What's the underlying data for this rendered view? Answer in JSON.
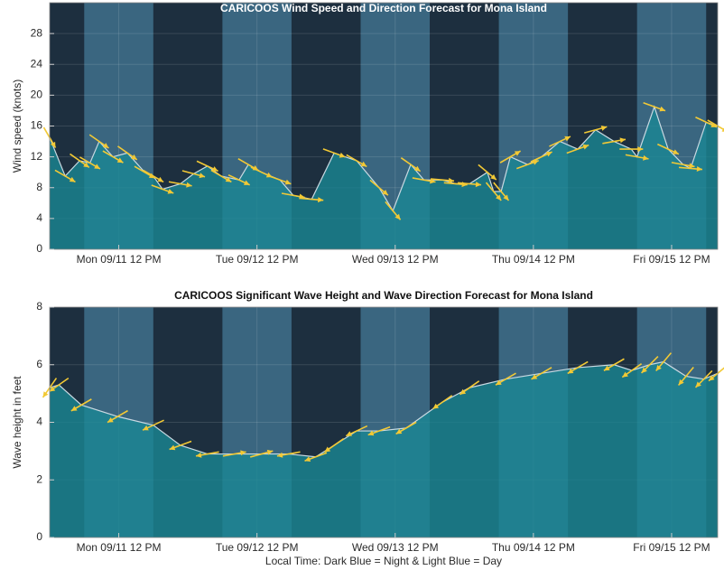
{
  "charts": [
    {
      "type": "area",
      "title": "CARICOOS Wind Speed and Direction Forecast for Mona Island",
      "ylabel": "Wind speed (knots)",
      "x": [
        0,
        2.7,
        5.2,
        7,
        8.6,
        11,
        13.5,
        16.5,
        18,
        19.6,
        22.7,
        25,
        27.4,
        29.8,
        32.9,
        34.5,
        36.8,
        40,
        42.3,
        45.5,
        49.4,
        53.3,
        57.2,
        59.6,
        62.7,
        65,
        68.2,
        70.5,
        72.9,
        76,
        77.1,
        78.4,
        80,
        83,
        85.4,
        88.6,
        91.7,
        94.8,
        98,
        101,
        102,
        105,
        107.4,
        110,
        111.3,
        114,
        116
      ],
      "values": [
        14.5,
        9.5,
        11.5,
        11.2,
        14,
        12,
        12.5,
        10,
        9.5,
        7.8,
        8.5,
        9.8,
        10.8,
        9.5,
        9,
        11,
        10,
        9,
        7,
        6.5,
        12.5,
        11.5,
        8,
        5,
        11,
        9,
        9,
        8.5,
        8.5,
        10,
        7.5,
        7.5,
        12,
        11,
        12,
        14,
        13,
        15.5,
        14,
        13,
        12,
        18.5,
        13,
        11,
        10.5,
        16.5,
        16
      ],
      "directions": [
        150,
        120,
        125,
        120,
        125,
        120,
        125,
        120,
        120,
        110,
        100,
        105,
        115,
        120,
        115,
        120,
        115,
        110,
        100,
        95,
        110,
        120,
        130,
        140,
        125,
        100,
        95,
        95,
        95,
        130,
        140,
        140,
        60,
        70,
        65,
        65,
        70,
        75,
        80,
        90,
        100,
        110,
        115,
        100,
        95,
        115,
        120
      ],
      "xlim": [
        0,
        116
      ],
      "ylim": [
        0,
        32
      ],
      "yticks": [
        0,
        4,
        8,
        12,
        16,
        20,
        24,
        28
      ],
      "xticks": [
        {
          "value": 12,
          "label": "Mon 09/11 12 PM"
        },
        {
          "value": 36,
          "label": "Tue 09/12 12 PM"
        },
        {
          "value": 60,
          "label": "Wed 09/13 12 PM"
        },
        {
          "value": 84,
          "label": "Thu 09/14 12 PM"
        },
        {
          "value": 108,
          "label": "Fri 09/15 12 PM"
        }
      ],
      "day_periods": [
        [
          6,
          18
        ],
        [
          30,
          42
        ],
        [
          54,
          66
        ],
        [
          78,
          90
        ],
        [
          102,
          114
        ]
      ],
      "night_color": "#1d2f3f",
      "day_color": "#3a6680",
      "fill_color": "#1a8793",
      "line_color": "#c9d9e2",
      "arrow_color": "#f2c935",
      "grid": true
    },
    {
      "type": "area",
      "title": "CARICOOS Significant Wave Height and Wave Direction Forecast for Mona Island",
      "ylabel": "Wave height in feet",
      "xlabel": "Local Time: Dark Blue = Night & Light Blue = Day",
      "x": [
        0,
        1.6,
        5.5,
        11.8,
        18,
        22.7,
        27.4,
        32.1,
        36.8,
        41.5,
        46.2,
        49.4,
        53.3,
        57.2,
        61.9,
        68.2,
        72.9,
        79.2,
        85.4,
        91.7,
        98,
        101.1,
        104.2,
        106.6,
        110.5,
        113.6,
        116
      ],
      "values": [
        5.2,
        5.3,
        4.6,
        4.2,
        3.9,
        3.2,
        2.9,
        2.9,
        2.9,
        2.9,
        2.8,
        3.2,
        3.7,
        3.7,
        3.8,
        4.7,
        5.2,
        5.5,
        5.7,
        5.9,
        6,
        5.8,
        6,
        6.1,
        5.6,
        5.5,
        5.7
      ],
      "directions": [
        215,
        235,
        240,
        240,
        245,
        250,
        260,
        80,
        75,
        260,
        250,
        235,
        245,
        250,
        240,
        235,
        235,
        240,
        240,
        240,
        240,
        235,
        225,
        220,
        220,
        225,
        230
      ],
      "xlim": [
        0,
        116
      ],
      "ylim": [
        0,
        8
      ],
      "yticks": [
        0,
        2,
        4,
        6,
        8
      ],
      "xticks": [
        {
          "value": 12,
          "label": "Mon 09/11 12 PM"
        },
        {
          "value": 36,
          "label": "Tue 09/12 12 PM"
        },
        {
          "value": 60,
          "label": "Wed 09/13 12 PM"
        },
        {
          "value": 84,
          "label": "Thu 09/14 12 PM"
        },
        {
          "value": 108,
          "label": "Fri 09/15 12 PM"
        }
      ],
      "day_periods": [
        [
          6,
          18
        ],
        [
          30,
          42
        ],
        [
          54,
          66
        ],
        [
          78,
          90
        ],
        [
          102,
          114
        ]
      ],
      "night_color": "#1d2f3f",
      "day_color": "#3a6680",
      "fill_color": "#1a8793",
      "line_color": "#c9d9e2",
      "arrow_color": "#f2c935",
      "grid": true
    }
  ]
}
